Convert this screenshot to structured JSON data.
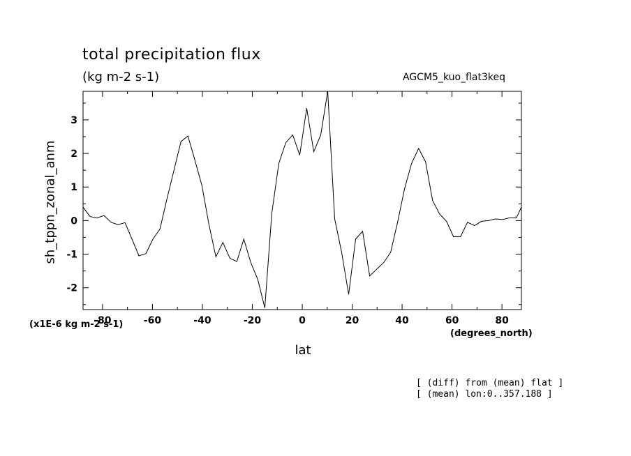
{
  "chart_data": {
    "type": "line",
    "title": "total precipitation flux",
    "units": "(kg m-2 s-1)",
    "experiment": "AGCM5_kuo_flat3keq",
    "ylabel": "sh_tppn_zonal_anm",
    "scale_note": "(x1E-6 kg m-2 s-1)",
    "xlabel": "lat",
    "x_units": "(degrees_north)",
    "notes": [
      "[ (diff) from (mean) flat ]",
      "[ (mean) lon:0..357.188 ]"
    ],
    "xlim": [
      -87.8,
      87.8
    ],
    "ylim": [
      -2.65,
      3.85
    ],
    "x_ticks": [
      -80,
      -60,
      -40,
      -20,
      0,
      20,
      40,
      60,
      80
    ],
    "y_ticks": [
      -2,
      -1,
      0,
      1,
      2,
      3
    ],
    "grid": false,
    "series": [
      {
        "color": "#000000",
        "x": [
          -87.8,
          -85,
          -82.2,
          -79.4,
          -76.6,
          -73.8,
          -71,
          -68.2,
          -65.4,
          -62.6,
          -59.8,
          -57,
          -54.2,
          -51.4,
          -48.6,
          -45.8,
          -43,
          -40.2,
          -37.4,
          -34.6,
          -31.8,
          -29,
          -26.2,
          -23.4,
          -20.6,
          -17.8,
          -15,
          -12.2,
          -9.4,
          -6.6,
          -3.8,
          -1,
          1.8,
          4.6,
          7.4,
          10.2,
          13,
          15.8,
          18.6,
          21.4,
          24.2,
          27,
          29.8,
          32.6,
          35.4,
          38.2,
          41,
          43.8,
          46.6,
          49.4,
          52.2,
          55,
          57.8,
          60.6,
          63.4,
          66.2,
          69,
          71.8,
          74.6,
          77.4,
          80.2,
          83,
          85.8,
          87.8
        ],
        "y": [
          0.4,
          0.12,
          0.08,
          0.15,
          -0.05,
          -0.12,
          -0.06,
          -0.55,
          -1.05,
          -0.98,
          -0.55,
          -0.25,
          0.65,
          1.5,
          2.35,
          2.52,
          1.8,
          1.05,
          -0.1,
          -1.08,
          -0.65,
          -1.12,
          -1.22,
          -0.55,
          -1.25,
          -1.75,
          -2.6,
          0.22,
          1.7,
          2.32,
          2.55,
          1.95,
          3.35,
          2.05,
          2.55,
          3.85,
          0.05,
          -0.95,
          -2.2,
          -0.55,
          -0.32,
          -1.65,
          -1.45,
          -1.25,
          -0.95,
          -0.05,
          0.95,
          1.7,
          2.15,
          1.75,
          0.6,
          0.2,
          -0.02,
          -0.48,
          -0.48,
          -0.05,
          -0.15,
          -0.02,
          0.0,
          0.05,
          0.03,
          0.08,
          0.08,
          0.4
        ]
      }
    ]
  }
}
